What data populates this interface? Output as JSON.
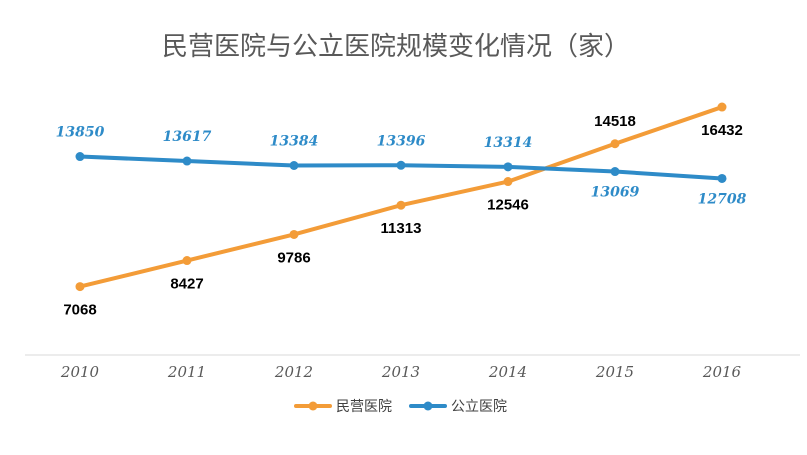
{
  "chart_data": {
    "type": "line",
    "title": "民营医院与公立医院规模变化情况（家）",
    "categories": [
      "2010",
      "2011",
      "2012",
      "2013",
      "2014",
      "2015",
      "2016"
    ],
    "series": [
      {
        "name": "民营医院",
        "color": "#F39C38",
        "values": [
          7068,
          8427,
          9786,
          11313,
          12546,
          14518,
          16432
        ]
      },
      {
        "name": "公立医院",
        "color": "#2E8BC8",
        "values": [
          13850,
          13617,
          13384,
          13396,
          13314,
          13069,
          12708
        ]
      }
    ],
    "xlabel": "",
    "ylabel": "",
    "ylim": [
      3500,
      16800
    ],
    "grid": false,
    "legend_position": "bottom"
  }
}
